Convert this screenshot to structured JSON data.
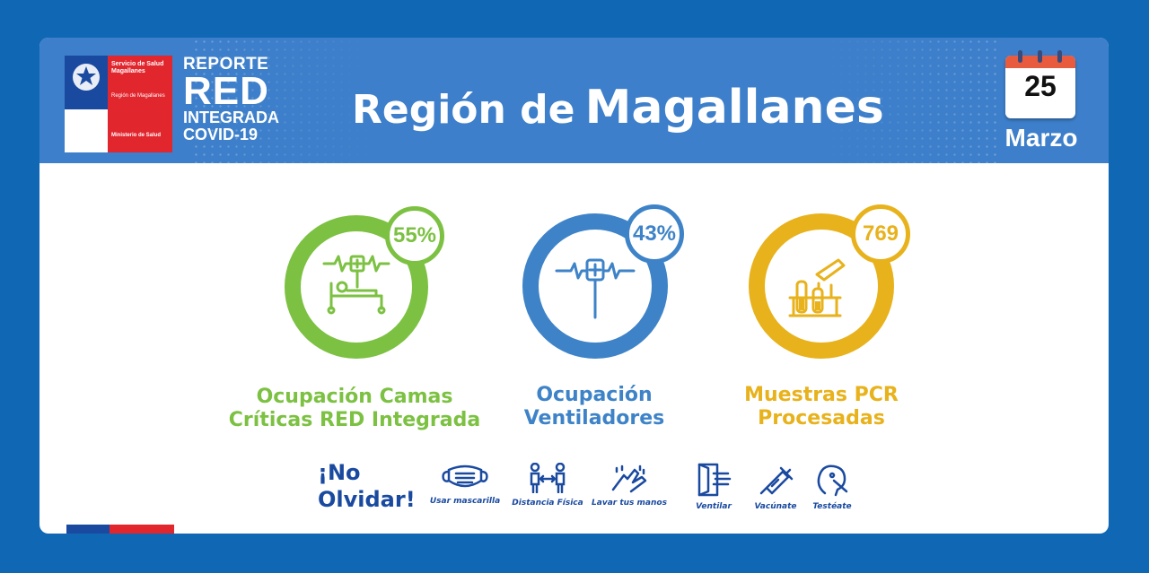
{
  "header": {
    "logo": {
      "service_name": "Servicio de Salud Magallanes",
      "region": "Región de Magallanes",
      "ministry": "Ministerio de Salud"
    },
    "report": {
      "line1": "REPORTE",
      "line2": "RED",
      "line3": "INTEGRADA",
      "line4": "COVID-19"
    },
    "title_prefix": "Región de",
    "title_main": "Magallanes",
    "date": {
      "day": "25",
      "month": "Marzo"
    }
  },
  "stats": [
    {
      "value": "55%",
      "label_line1": "Ocupación Camas",
      "label_line2": "Críticas RED Integrada",
      "icon": "hospital-bed-icon",
      "color": "#7cc142"
    },
    {
      "value": "43%",
      "label_line1": "Ocupación",
      "label_line2": "Ventiladores",
      "icon": "ventilator-icon",
      "color": "#3e83c8"
    },
    {
      "value": "769",
      "label_line1": "Muestras PCR",
      "label_line2": "Procesadas",
      "icon": "test-tubes-icon",
      "color": "#e8b21c"
    }
  ],
  "reminder": {
    "title_line1": "¡No",
    "title_line2": "Olvidar!",
    "tips": [
      {
        "label": "Usar mascarilla",
        "icon": "mask-icon"
      },
      {
        "label": "Distancia Física",
        "icon": "distance-icon"
      },
      {
        "label": "Lavar tus manos",
        "icon": "handwash-icon"
      },
      {
        "label": "Ventilar",
        "icon": "window-icon"
      },
      {
        "label": "Vacúnate",
        "icon": "syringe-icon"
      },
      {
        "label": "Testéate",
        "icon": "swab-test-icon"
      }
    ]
  },
  "colors": {
    "background": "#1068b5",
    "header": "#3d7fca",
    "text_blue": "#1a4aa0"
  }
}
